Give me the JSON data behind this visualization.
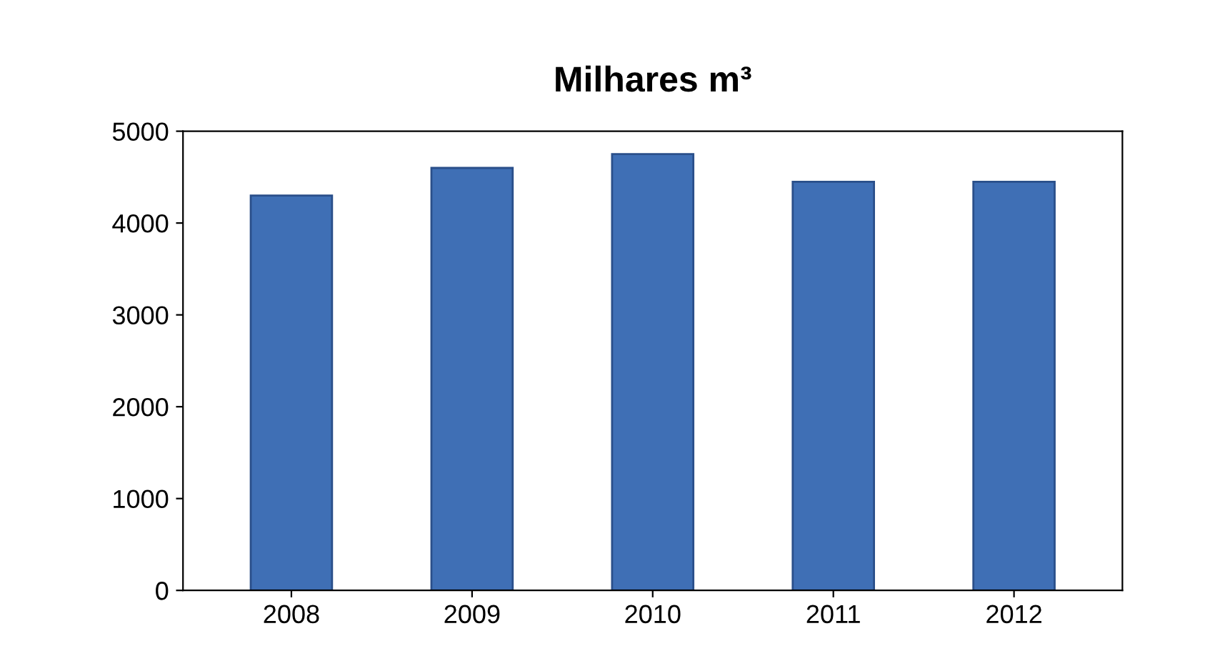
{
  "chart_data": {
    "type": "bar",
    "title": "Milhares m³",
    "categories": [
      "2008",
      "2009",
      "2010",
      "2011",
      "2012"
    ],
    "values": [
      4300,
      4600,
      4750,
      4450,
      4450
    ],
    "color": "#3f6fb5",
    "ylim": [
      0,
      5000
    ],
    "yticks": [
      0,
      1000,
      2000,
      3000,
      4000,
      5000
    ],
    "grid": false
  }
}
